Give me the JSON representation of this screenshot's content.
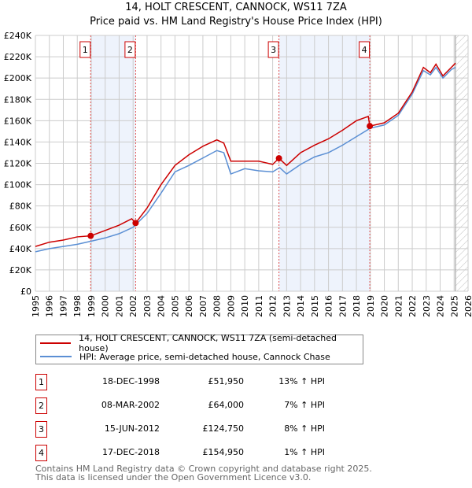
{
  "title": "14, HOLT CRESCENT, CANNOCK, WS11 7ZA",
  "subtitle": "Price paid vs. HM Land Registry's House Price Index (HPI)",
  "colors": {
    "property": "#cc0000",
    "hpi": "#5b8fd4",
    "shade": "#eef3fc",
    "grid": "#cccccc"
  },
  "chart_data": {
    "type": "line",
    "title": "14, HOLT CRESCENT, CANNOCK, WS11 7ZA",
    "xlim": [
      1995,
      2026
    ],
    "ylim": [
      0,
      240000
    ],
    "xticks": [
      "1995",
      "1996",
      "1997",
      "1998",
      "1999",
      "2000",
      "2001",
      "2002",
      "2003",
      "2004",
      "2005",
      "2006",
      "2007",
      "2008",
      "2009",
      "2010",
      "2011",
      "2012",
      "2013",
      "2014",
      "2015",
      "2016",
      "2017",
      "2018",
      "2019",
      "2020",
      "2021",
      "2022",
      "2023",
      "2024",
      "2025",
      "2026"
    ],
    "yticks": [
      "£0",
      "£20K",
      "£40K",
      "£60K",
      "£80K",
      "£100K",
      "£120K",
      "£140K",
      "£160K",
      "£180K",
      "£200K",
      "£220K",
      "£240K"
    ],
    "grid": true,
    "forecast_hatch_from": 2025.1,
    "series": [
      {
        "name": "14, HOLT CRESCENT, CANNOCK, WS11 7ZA (semi-detached house)",
        "x": [
          1995,
          1996,
          1997,
          1998,
          1998.96,
          2000,
          2001,
          2001.9,
          2002.18,
          2003,
          2004,
          2005,
          2006,
          2007,
          2008,
          2008.5,
          2009,
          2010,
          2011,
          2012,
          2012.45,
          2013,
          2014,
          2015,
          2016,
          2017,
          2018,
          2018.85,
          2018.96,
          2020,
          2021,
          2022,
          2022.8,
          2023.3,
          2023.7,
          2024.2,
          2024.8,
          2025.1
        ],
        "y": [
          42000,
          46000,
          48000,
          51000,
          51950,
          57000,
          62000,
          68000,
          64000,
          78000,
          100000,
          118000,
          128000,
          136000,
          142000,
          139000,
          122000,
          122000,
          122000,
          119000,
          124750,
          118000,
          130000,
          137000,
          143000,
          151000,
          160000,
          164000,
          154950,
          158000,
          167000,
          187000,
          210000,
          205000,
          213000,
          202000,
          210000,
          214000
        ]
      },
      {
        "name": "HPI: Average price, semi-detached house, Cannock Chase",
        "x": [
          1995,
          1996,
          1997,
          1998,
          1999,
          2000,
          2001,
          2002,
          2003,
          2004,
          2005,
          2006,
          2007,
          2008,
          2008.5,
          2009,
          2010,
          2011,
          2012,
          2012.5,
          2013,
          2014,
          2015,
          2016,
          2017,
          2018,
          2019,
          2020,
          2021,
          2022,
          2022.8,
          2023.3,
          2023.7,
          2024.2,
          2024.8,
          2025.1
        ],
        "y": [
          37000,
          40000,
          42000,
          44000,
          47000,
          50000,
          54000,
          60000,
          73000,
          92000,
          112000,
          118000,
          125000,
          132000,
          130000,
          110000,
          115000,
          113000,
          112000,
          116000,
          110000,
          119000,
          126000,
          130000,
          137000,
          145000,
          153000,
          156000,
          165000,
          185000,
          207000,
          203000,
          210000,
          200000,
          208000,
          210000
        ]
      }
    ],
    "sales": [
      {
        "n": "1",
        "x": 1998.96,
        "y": 51950,
        "date": "18-DEC-1998",
        "price": "£51,950",
        "hpi": "13% ↑ HPI"
      },
      {
        "n": "2",
        "x": 2002.18,
        "y": 64000,
        "date": "08-MAR-2002",
        "price": "£64,000",
        "hpi": "7% ↑ HPI"
      },
      {
        "n": "3",
        "x": 2012.45,
        "y": 124750,
        "date": "15-JUN-2012",
        "price": "£124,750",
        "hpi": "8% ↑ HPI"
      },
      {
        "n": "4",
        "x": 2018.96,
        "y": 154950,
        "date": "17-DEC-2018",
        "price": "£154,950",
        "hpi": "1% ↑ HPI"
      }
    ],
    "shaded_ranges": [
      [
        1998.96,
        2002.18
      ],
      [
        2012.45,
        2018.96
      ]
    ]
  },
  "legend": {
    "property": "14, HOLT CRESCENT, CANNOCK, WS11 7ZA (semi-detached house)",
    "hpi": "HPI: Average price, semi-detached house, Cannock Chase"
  },
  "footer": {
    "line1": "Contains HM Land Registry data © Crown copyright and database right 2025.",
    "line2": "This data is licensed under the Open Government Licence v3.0."
  }
}
